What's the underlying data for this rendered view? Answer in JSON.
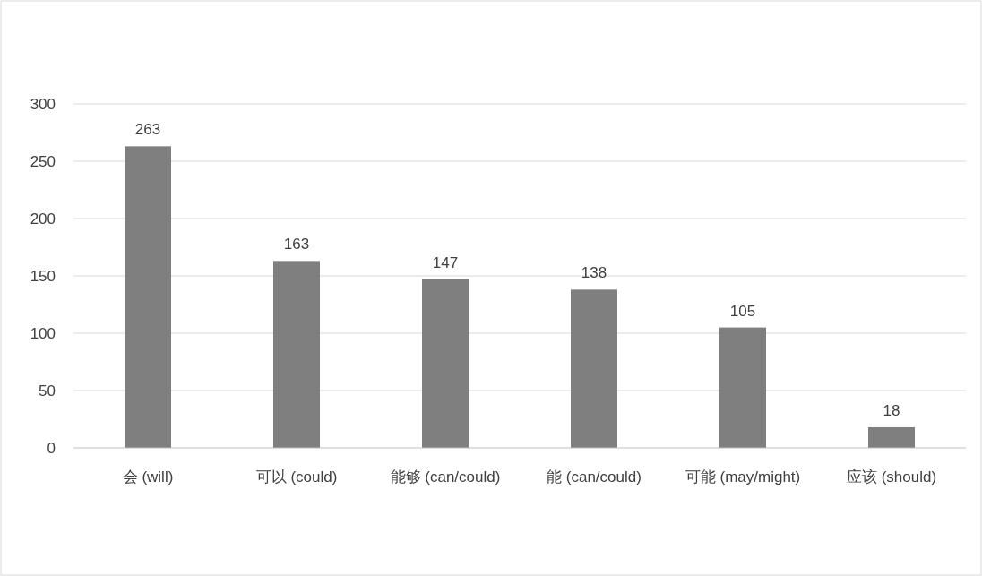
{
  "chart_data": {
    "type": "bar",
    "categories": [
      "会 (will)",
      "可以 (could)",
      "能够 (can/could)",
      "能 (can/could)",
      "可能 (may/might)",
      "应该 (should)"
    ],
    "values": [
      263,
      163,
      147,
      138,
      105,
      18
    ],
    "color": "#7f7f7f",
    "ylim": [
      0,
      300
    ],
    "yticks": [
      0,
      50,
      100,
      150,
      200,
      250,
      300
    ],
    "grid": "y",
    "data_labels": true
  }
}
